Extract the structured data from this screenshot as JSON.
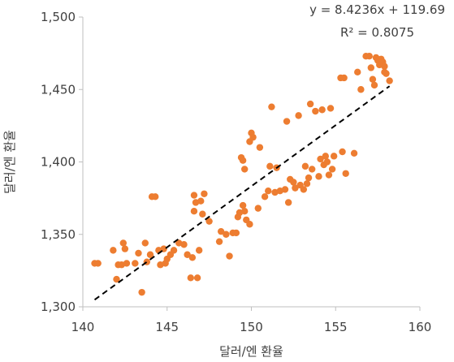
{
  "chart_data": {
    "type": "scatter",
    "title": "",
    "xlabel": "달러/엔 환율",
    "ylabel": "달러/엔 환율",
    "xlim": [
      140,
      160
    ],
    "ylim": [
      1300,
      1500
    ],
    "x_ticks": [
      140,
      145,
      150,
      155,
      160
    ],
    "y_ticks": [
      1300,
      1350,
      1400,
      1450,
      1500
    ],
    "x_tick_labels": [
      "140",
      "145",
      "150",
      "155",
      "160"
    ],
    "y_tick_labels": [
      "1,300",
      "1,350",
      "1,400",
      "1,450",
      "1,500"
    ],
    "grid": false,
    "legend": "none",
    "marker_color": "#ED7D31",
    "trendline": {
      "style": "dashed",
      "color": "#000000",
      "slope": 8.4236,
      "intercept": 119.69,
      "x_range": [
        140.7,
        158.2
      ],
      "equation_label": "y = 8.4236x + 119.69",
      "r2_label": "R² = 0.8075"
    },
    "series": [
      {
        "points": [
          [
            140.7,
            1330
          ],
          [
            140.9,
            1330
          ],
          [
            141.8,
            1339
          ],
          [
            142.0,
            1319
          ],
          [
            142.1,
            1329
          ],
          [
            142.3,
            1329
          ],
          [
            142.4,
            1344
          ],
          [
            142.5,
            1340
          ],
          [
            142.6,
            1330
          ],
          [
            143.1,
            1330
          ],
          [
            143.3,
            1337
          ],
          [
            143.5,
            1310
          ],
          [
            143.7,
            1344
          ],
          [
            143.8,
            1331
          ],
          [
            144.0,
            1336
          ],
          [
            144.1,
            1376
          ],
          [
            144.3,
            1376
          ],
          [
            144.5,
            1339
          ],
          [
            144.6,
            1329
          ],
          [
            144.8,
            1340
          ],
          [
            144.9,
            1330
          ],
          [
            145.0,
            1333
          ],
          [
            145.2,
            1336
          ],
          [
            145.4,
            1339
          ],
          [
            145.7,
            1344
          ],
          [
            146.0,
            1343
          ],
          [
            146.2,
            1336
          ],
          [
            146.4,
            1320
          ],
          [
            146.5,
            1334
          ],
          [
            146.6,
            1377
          ],
          [
            146.6,
            1366
          ],
          [
            146.7,
            1372
          ],
          [
            146.8,
            1320
          ],
          [
            146.9,
            1339
          ],
          [
            147.0,
            1373
          ],
          [
            147.1,
            1364
          ],
          [
            147.2,
            1378
          ],
          [
            147.5,
            1359
          ],
          [
            148.1,
            1345
          ],
          [
            148.2,
            1352
          ],
          [
            148.5,
            1350
          ],
          [
            148.7,
            1335
          ],
          [
            148.9,
            1351
          ],
          [
            149.1,
            1351
          ],
          [
            149.2,
            1362
          ],
          [
            149.3,
            1365
          ],
          [
            149.4,
            1403
          ],
          [
            149.5,
            1370
          ],
          [
            149.5,
            1401
          ],
          [
            149.6,
            1366
          ],
          [
            149.6,
            1395
          ],
          [
            149.7,
            1360
          ],
          [
            149.9,
            1357
          ],
          [
            149.9,
            1414
          ],
          [
            150.0,
            1420
          ],
          [
            150.1,
            1417
          ],
          [
            150.4,
            1368
          ],
          [
            150.5,
            1410
          ],
          [
            150.8,
            1376
          ],
          [
            151.0,
            1380
          ],
          [
            151.1,
            1397
          ],
          [
            151.2,
            1438
          ],
          [
            151.4,
            1379
          ],
          [
            151.5,
            1396
          ],
          [
            151.7,
            1380
          ],
          [
            152.0,
            1381
          ],
          [
            152.1,
            1428
          ],
          [
            152.2,
            1372
          ],
          [
            152.3,
            1388
          ],
          [
            152.5,
            1386
          ],
          [
            152.6,
            1382
          ],
          [
            152.8,
            1432
          ],
          [
            152.9,
            1384
          ],
          [
            153.1,
            1381
          ],
          [
            153.2,
            1397
          ],
          [
            153.3,
            1385
          ],
          [
            153.4,
            1389
          ],
          [
            153.5,
            1440
          ],
          [
            153.6,
            1395
          ],
          [
            153.8,
            1435
          ],
          [
            154.0,
            1390
          ],
          [
            154.1,
            1402
          ],
          [
            154.2,
            1436
          ],
          [
            154.3,
            1398
          ],
          [
            154.4,
            1404
          ],
          [
            154.5,
            1400
          ],
          [
            154.6,
            1391
          ],
          [
            154.7,
            1437
          ],
          [
            154.8,
            1395
          ],
          [
            154.9,
            1404
          ],
          [
            155.3,
            1458
          ],
          [
            155.4,
            1407
          ],
          [
            155.5,
            1458
          ],
          [
            155.6,
            1392
          ],
          [
            156.1,
            1406
          ],
          [
            156.3,
            1462
          ],
          [
            156.5,
            1450
          ],
          [
            156.8,
            1473
          ],
          [
            157.0,
            1473
          ],
          [
            157.1,
            1465
          ],
          [
            157.2,
            1457
          ],
          [
            157.3,
            1453
          ],
          [
            157.4,
            1472
          ],
          [
            157.5,
            1470
          ],
          [
            157.6,
            1467
          ],
          [
            157.7,
            1471
          ],
          [
            157.8,
            1469
          ],
          [
            157.9,
            1466
          ],
          [
            157.9,
            1462
          ],
          [
            158.0,
            1461
          ],
          [
            158.2,
            1456
          ]
        ]
      }
    ]
  }
}
